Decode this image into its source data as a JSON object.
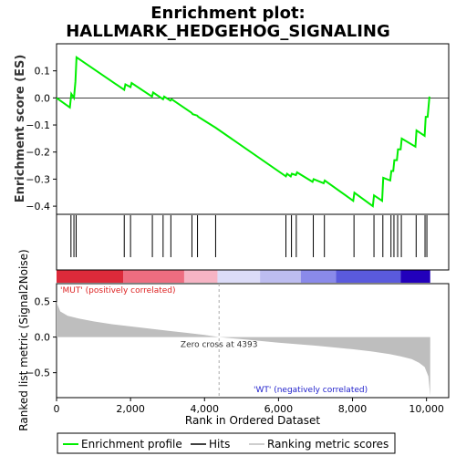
{
  "colors": {
    "enrichment_line": "#00ee00",
    "hit_line": "#000000",
    "metric_fill": "#bebebe",
    "zero_cross_line": "#aaaaaa",
    "pos_label": "#dd2222",
    "neg_label": "#2222cc"
  },
  "chart_data": [
    {
      "type": "line",
      "title_line1": "Enrichment plot:",
      "title_line2": "HALLMARK_HEDGEHOG_SIGNALING",
      "ylabel": "Enrichment score (ES)",
      "xlim": [
        0,
        10600
      ],
      "ylim": [
        -0.43,
        0.2
      ],
      "yticks": [
        0.1,
        0.0,
        -0.1,
        -0.2,
        -0.3,
        -0.4
      ],
      "ytick_labels": [
        "0.1",
        "0.0",
        "−0.1",
        "−0.2",
        "−0.3",
        "−0.4"
      ],
      "grid": false,
      "series": [
        {
          "name": "Enrichment profile",
          "x": [
            0,
            360,
            400,
            470,
            510,
            540,
            1830,
            1860,
            2000,
            2030,
            2580,
            2610,
            2880,
            2910,
            3080,
            3110,
            3650,
            3680,
            3800,
            3830,
            4300,
            6200,
            6230,
            6330,
            6360,
            6470,
            6500,
            6920,
            6950,
            7220,
            7250,
            8020,
            8050,
            8550,
            8580,
            8800,
            8830,
            9020,
            9050,
            9100,
            9130,
            9200,
            9230,
            9300,
            9330,
            9700,
            9730,
            9950,
            9980,
            10030,
            10080
          ],
          "y": [
            0.0,
            -0.035,
            0.015,
            0.0,
            0.06,
            0.15,
            0.03,
            0.05,
            0.04,
            0.055,
            0.005,
            0.02,
            -0.005,
            0.005,
            -0.01,
            -0.005,
            -0.055,
            -0.06,
            -0.065,
            -0.07,
            -0.11,
            -0.29,
            -0.28,
            -0.29,
            -0.28,
            -0.285,
            -0.275,
            -0.31,
            -0.3,
            -0.315,
            -0.305,
            -0.38,
            -0.35,
            -0.4,
            -0.36,
            -0.38,
            -0.295,
            -0.305,
            -0.27,
            -0.27,
            -0.23,
            -0.23,
            -0.19,
            -0.19,
            -0.15,
            -0.18,
            -0.12,
            -0.14,
            -0.07,
            -0.07,
            0.005
          ]
        }
      ]
    },
    {
      "type": "hits",
      "series": [
        {
          "name": "Hits",
          "x": [
            390,
            470,
            530,
            1830,
            2000,
            2590,
            2880,
            3090,
            3660,
            3810,
            4300,
            6200,
            6350,
            6480,
            6940,
            7240,
            8040,
            8580,
            8820,
            9040,
            9120,
            9220,
            9320,
            9720,
            9960,
            10010
          ]
        }
      ]
    },
    {
      "type": "area",
      "xlabel": "Rank in Ordered Dataset",
      "ylabel": "Ranked list metric (Signal2Noise)",
      "xlim": [
        0,
        10600
      ],
      "ylim": [
        -0.85,
        0.75
      ],
      "xticks": [
        0,
        2000,
        4000,
        6000,
        8000,
        10000
      ],
      "xtick_labels": [
        "0",
        "2,000",
        "4,000",
        "6,000",
        "8,000",
        "10,000"
      ],
      "yticks": [
        0.5,
        0.0,
        -0.5
      ],
      "ytick_labels": [
        "0.5",
        "0.0",
        "−0.5"
      ],
      "series": [
        {
          "name": "Ranking metric scores",
          "x": [
            0,
            30,
            100,
            300,
            600,
            1000,
            1500,
            2000,
            2500,
            3000,
            3500,
            4000,
            4393,
            5000,
            6000,
            7000,
            8000,
            8500,
            9000,
            9300,
            9600,
            9800,
            9950,
            10050,
            10100
          ],
          "y": [
            0.5,
            0.45,
            0.36,
            0.3,
            0.26,
            0.22,
            0.18,
            0.15,
            0.12,
            0.09,
            0.06,
            0.03,
            0.0,
            -0.03,
            -0.08,
            -0.12,
            -0.17,
            -0.2,
            -0.24,
            -0.27,
            -0.31,
            -0.36,
            -0.42,
            -0.55,
            -0.83
          ]
        }
      ],
      "annotations": {
        "zero_cross": "Zero cross at 4393",
        "zero_cross_x": 4393,
        "pos_label": "'MUT' (positively correlated)",
        "neg_label": "'WT' (negatively correlated)"
      }
    }
  ],
  "legend": {
    "items": [
      {
        "label": "Enrichment profile",
        "color": "#00ee00"
      },
      {
        "label": "Hits",
        "color": "#000000"
      },
      {
        "label": "Ranking metric scores",
        "color": "#bebebe"
      }
    ]
  }
}
